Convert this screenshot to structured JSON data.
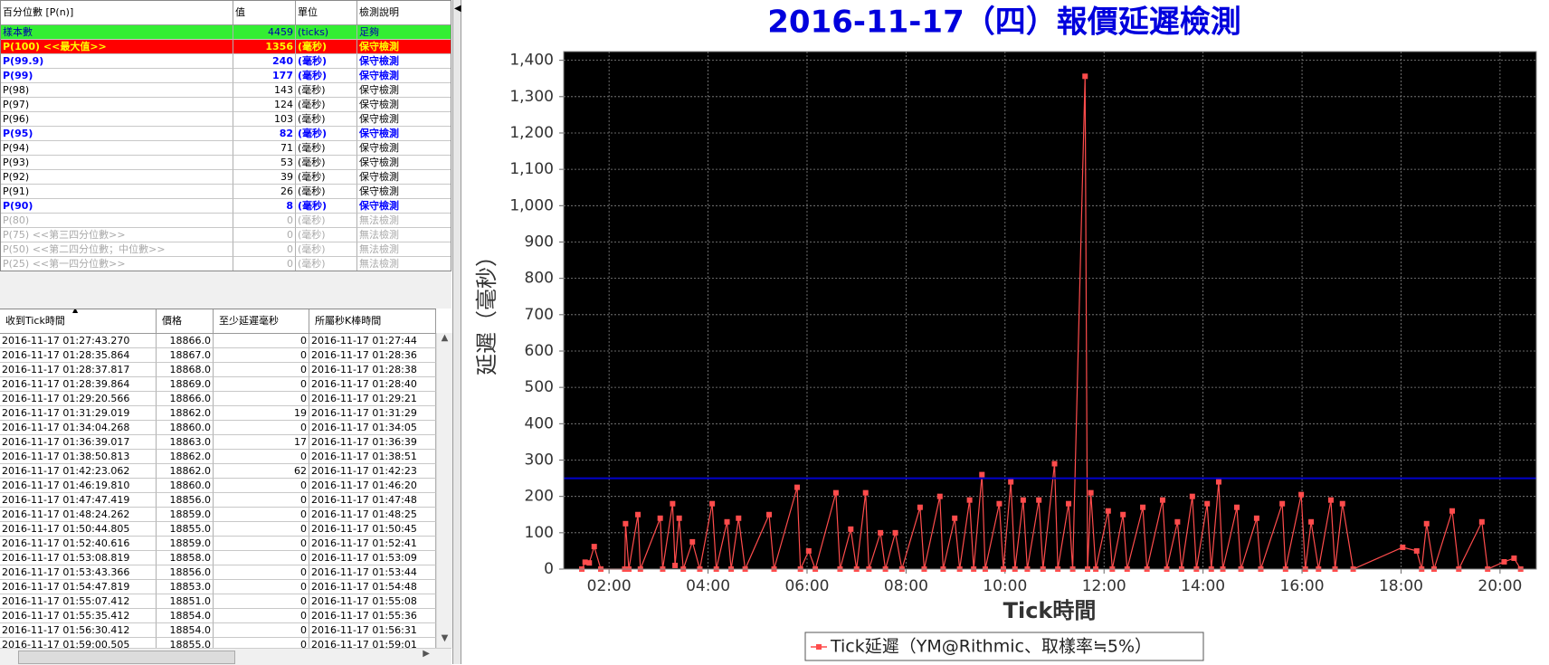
{
  "left_panel": {
    "percentile_table": {
      "header": [
        "百分位數 [P(n)]",
        "值",
        "單位",
        "檢測說明"
      ],
      "rows": [
        {
          "style": "sample",
          "cells": [
            "樣本數",
            4459,
            "(ticks)",
            "足夠"
          ]
        },
        {
          "style": "max",
          "cells": [
            "P(100)  <<最大值>>",
            1356,
            "(毫秒)",
            "保守檢測"
          ]
        },
        {
          "style": "key",
          "cells": [
            "P(99.9)",
            240,
            "(毫秒)",
            "保守檢測"
          ]
        },
        {
          "style": "key",
          "cells": [
            "P(99)",
            177,
            "(毫秒)",
            "保守檢測"
          ]
        },
        {
          "style": "normal",
          "cells": [
            "P(98)",
            143,
            "(毫秒)",
            "保守檢測"
          ]
        },
        {
          "style": "normal",
          "cells": [
            "P(97)",
            124,
            "(毫秒)",
            "保守檢測"
          ]
        },
        {
          "style": "normal",
          "cells": [
            "P(96)",
            103,
            "(毫秒)",
            "保守檢測"
          ]
        },
        {
          "style": "key",
          "cells": [
            "P(95)",
            82,
            "(毫秒)",
            "保守檢測"
          ]
        },
        {
          "style": "normal",
          "cells": [
            "P(94)",
            71,
            "(毫秒)",
            "保守檢測"
          ]
        },
        {
          "style": "normal",
          "cells": [
            "P(93)",
            53,
            "(毫秒)",
            "保守檢測"
          ]
        },
        {
          "style": "normal",
          "cells": [
            "P(92)",
            39,
            "(毫秒)",
            "保守檢測"
          ]
        },
        {
          "style": "normal",
          "cells": [
            "P(91)",
            26,
            "(毫秒)",
            "保守檢測"
          ]
        },
        {
          "style": "key",
          "cells": [
            "P(90)",
            8,
            "(毫秒)",
            "保守檢測"
          ]
        },
        {
          "style": "na",
          "cells": [
            "P(80)",
            0,
            "(毫秒)",
            "無法檢測"
          ]
        },
        {
          "style": "na",
          "cells": [
            "P(75)  <<第三四分位數>>",
            0,
            "(毫秒)",
            "無法檢測"
          ]
        },
        {
          "style": "na",
          "cells": [
            "P(50)  <<第二四分位數；中位數>>",
            0,
            "(毫秒)",
            "無法檢測"
          ]
        },
        {
          "style": "na",
          "cells": [
            "P(25)  <<第一四分位數>>",
            0,
            "(毫秒)",
            "無法檢測"
          ]
        }
      ]
    },
    "tick_table": {
      "header": [
        "收到Tick時間",
        "價格",
        "至少延遲毫秒",
        "所屬秒K棒時間"
      ],
      "rows": [
        [
          "2016-11-17 01:27:43.270",
          "18866.0",
          0,
          "2016-11-17 01:27:44"
        ],
        [
          "2016-11-17 01:28:35.864",
          "18867.0",
          0,
          "2016-11-17 01:28:36"
        ],
        [
          "2016-11-17 01:28:37.817",
          "18868.0",
          0,
          "2016-11-17 01:28:38"
        ],
        [
          "2016-11-17 01:28:39.864",
          "18869.0",
          0,
          "2016-11-17 01:28:40"
        ],
        [
          "2016-11-17 01:29:20.566",
          "18866.0",
          0,
          "2016-11-17 01:29:21"
        ],
        [
          "2016-11-17 01:31:29.019",
          "18862.0",
          19,
          "2016-11-17 01:31:29"
        ],
        [
          "2016-11-17 01:34:04.268",
          "18860.0",
          0,
          "2016-11-17 01:34:05"
        ],
        [
          "2016-11-17 01:36:39.017",
          "18863.0",
          17,
          "2016-11-17 01:36:39"
        ],
        [
          "2016-11-17 01:38:50.813",
          "18862.0",
          0,
          "2016-11-17 01:38:51"
        ],
        [
          "2016-11-17 01:42:23.062",
          "18862.0",
          62,
          "2016-11-17 01:42:23"
        ],
        [
          "2016-11-17 01:46:19.810",
          "18860.0",
          0,
          "2016-11-17 01:46:20"
        ],
        [
          "2016-11-17 01:47:47.419",
          "18856.0",
          0,
          "2016-11-17 01:47:48"
        ],
        [
          "2016-11-17 01:48:24.262",
          "18859.0",
          0,
          "2016-11-17 01:48:25"
        ],
        [
          "2016-11-17 01:50:44.805",
          "18855.0",
          0,
          "2016-11-17 01:50:45"
        ],
        [
          "2016-11-17 01:52:40.616",
          "18859.0",
          0,
          "2016-11-17 01:52:41"
        ],
        [
          "2016-11-17 01:53:08.819",
          "18858.0",
          0,
          "2016-11-17 01:53:09"
        ],
        [
          "2016-11-17 01:53:43.366",
          "18856.0",
          0,
          "2016-11-17 01:53:44"
        ],
        [
          "2016-11-17 01:54:47.819",
          "18853.0",
          0,
          "2016-11-17 01:54:48"
        ],
        [
          "2016-11-17 01:55:07.412",
          "18851.0",
          0,
          "2016-11-17 01:55:08"
        ],
        [
          "2016-11-17 01:55:35.412",
          "18854.0",
          0,
          "2016-11-17 01:55:36"
        ],
        [
          "2016-11-17 01:56:30.412",
          "18854.0",
          0,
          "2016-11-17 01:56:31"
        ],
        [
          "2016-11-17 01:59:00.505",
          "18855.0",
          0,
          "2016-11-17 01:59:01"
        ]
      ]
    }
  },
  "chart_data": {
    "type": "line",
    "title": "2016-11-17（四）報價延遲檢測",
    "xlabel": "Tick時間",
    "ylabel": "延遲（毫秒）",
    "x": [
      "01:27",
      "01:31",
      "01:36",
      "01:42",
      "01:50",
      "02:19",
      "02:20",
      "02:24",
      "02:35",
      "02:38",
      "03:02",
      "03:05",
      "03:17",
      "03:20",
      "03:25",
      "03:30",
      "03:41",
      "03:50",
      "04:05",
      "04:10",
      "04:23",
      "04:28",
      "04:37",
      "04:45",
      "05:14",
      "05:20",
      "05:48",
      "05:52",
      "06:02",
      "06:10",
      "06:35",
      "06:40",
      "06:53",
      "07:00",
      "07:11",
      "07:15",
      "07:29",
      "07:35",
      "07:47",
      "07:55",
      "08:17",
      "08:22",
      "08:41",
      "08:45",
      "08:59",
      "09:05",
      "09:17",
      "09:22",
      "09:32",
      "09:36",
      "09:53",
      "09:58",
      "10:07",
      "10:12",
      "10:22",
      "10:27",
      "10:41",
      "10:46",
      "11:00",
      "11:04",
      "11:17",
      "11:22",
      "11:37",
      "11:40",
      "11:44",
      "11:50",
      "12:05",
      "12:10",
      "12:23",
      "12:28",
      "12:47",
      "12:52",
      "13:11",
      "13:16",
      "13:29",
      "13:34",
      "13:47",
      "13:52",
      "14:05",
      "14:10",
      "14:19",
      "14:24",
      "14:41",
      "14:46",
      "15:05",
      "15:10",
      "15:36",
      "15:40",
      "15:59",
      "16:04",
      "16:11",
      "16:20",
      "16:35",
      "16:40",
      "16:49",
      "17:02",
      "18:02",
      "18:19",
      "18:25",
      "18:31",
      "18:40",
      "19:02",
      "19:10",
      "19:38",
      "19:45",
      "20:05",
      "20:17",
      "20:25"
    ],
    "series": [
      {
        "name": "Tick延遲（YM@Rithmic、取樣率≒5%）",
        "color": "#ff4c4c",
        "values": [
          0,
          19,
          17,
          62,
          0,
          0,
          125,
          0,
          150,
          0,
          140,
          0,
          180,
          10,
          140,
          0,
          75,
          0,
          180,
          0,
          130,
          0,
          140,
          0,
          150,
          0,
          225,
          0,
          50,
          0,
          210,
          0,
          110,
          0,
          210,
          0,
          100,
          0,
          100,
          0,
          170,
          0,
          200,
          0,
          140,
          0,
          190,
          0,
          260,
          0,
          180,
          0,
          240,
          0,
          190,
          0,
          190,
          0,
          290,
          0,
          180,
          0,
          1356,
          0,
          210,
          0,
          160,
          0,
          150,
          0,
          170,
          0,
          190,
          0,
          130,
          0,
          200,
          0,
          180,
          0,
          240,
          0,
          170,
          0,
          140,
          0,
          180,
          0,
          205,
          0,
          130,
          0,
          190,
          0,
          180,
          0,
          60,
          50,
          0,
          125,
          0,
          160,
          0,
          130,
          0,
          20,
          30,
          0
        ]
      }
    ],
    "xlim": [
      "01:05",
      "20:44"
    ],
    "xticks": [
      "02:00",
      "04:00",
      "06:00",
      "08:00",
      "10:00",
      "12:00",
      "14:00",
      "16:00",
      "18:00",
      "20:00"
    ],
    "ylim": [
      0,
      1424
    ],
    "yticks": [
      0,
      100,
      200,
      300,
      400,
      500,
      600,
      700,
      800,
      900,
      {
        "value": 1000,
        "label": "1,000"
      },
      {
        "value": 1100,
        "label": "1,100"
      },
      {
        "value": 1200,
        "label": "1,200"
      },
      {
        "value": 1300,
        "label": "1,300"
      },
      {
        "value": 1400,
        "label": "1,400"
      }
    ],
    "grid": true,
    "background": "#000000",
    "reference_line": {
      "value": 250,
      "color": "#0000cc"
    },
    "legend": "bottom"
  }
}
